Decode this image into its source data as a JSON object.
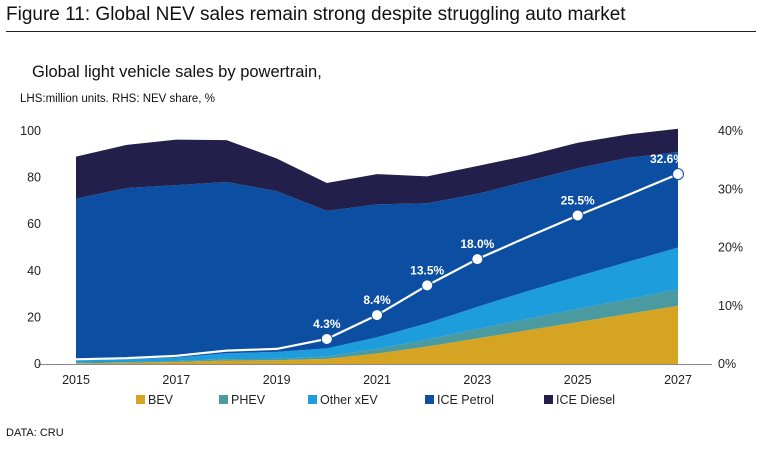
{
  "figure_title": "Figure 11: Global NEV sales remain strong despite struggling auto market",
  "source": "DATA: CRU",
  "chart_data": {
    "type": "area",
    "stacked": true,
    "title": "Global light vehicle sales by powertrain,",
    "subtitle": "LHS:million units. RHS: NEV share, %",
    "x": [
      2015,
      2016,
      2017,
      2018,
      2019,
      2020,
      2021,
      2022,
      2023,
      2024,
      2025,
      2026,
      2027
    ],
    "x_tick_labels": [
      "2015",
      "2017",
      "2019",
      "2021",
      "2023",
      "2025",
      "2027"
    ],
    "ylim": [
      0,
      100
    ],
    "y_ticks": [
      "0",
      "20",
      "40",
      "60",
      "80",
      "100"
    ],
    "y2lim": [
      0,
      40
    ],
    "y2_ticks": [
      "0%",
      "10%",
      "20%",
      "30%",
      "40%"
    ],
    "series": [
      {
        "name": "BEV",
        "color": "#d4a422",
        "values": [
          0.3,
          0.5,
          0.9,
          1.5,
          1.6,
          2.2,
          4.5,
          7.5,
          11,
          14.5,
          18,
          21.5,
          25
        ]
      },
      {
        "name": "PHEV",
        "color": "#4a9aa0",
        "values": [
          0.2,
          0.3,
          0.4,
          0.6,
          0.6,
          1.0,
          2.0,
          3.0,
          4.0,
          4.8,
          5.6,
          6.3,
          7
        ]
      },
      {
        "name": "Other xEV",
        "color": "#1e9ddd",
        "values": [
          1.0,
          1.2,
          1.5,
          2.5,
          3.0,
          3.5,
          5.0,
          7.0,
          9.5,
          12.0,
          14.0,
          16.0,
          18
        ]
      },
      {
        "name": "ICE Petrol",
        "color": "#0c4ea2",
        "values": [
          69.5,
          73.5,
          74,
          73.5,
          69,
          59,
          57,
          51.5,
          48.5,
          47.2,
          46.4,
          44.7,
          41
        ]
      },
      {
        "name": "ICE Diesel",
        "color": "#221f4a",
        "values": [
          18,
          18.5,
          19.5,
          18,
          14,
          12,
          13,
          11.5,
          12,
          11,
          11,
          10,
          10
        ]
      }
    ],
    "share_line": {
      "name": "NEV share",
      "color": "#ffffff",
      "values": [
        0.8,
        1.0,
        1.4,
        2.3,
        2.6,
        4.3,
        8.4,
        13.5,
        18.0,
        21.8,
        25.5,
        29.0,
        32.6
      ],
      "labels": [
        {
          "x": 2020,
          "text": "4.3%"
        },
        {
          "x": 2021,
          "text": "8.4%"
        },
        {
          "x": 2022,
          "text": "13.5%"
        },
        {
          "x": 2023,
          "text": "18.0%"
        },
        {
          "x": 2025,
          "text": "25.5%"
        },
        {
          "x": 2027,
          "text": "32.6%"
        }
      ]
    }
  }
}
